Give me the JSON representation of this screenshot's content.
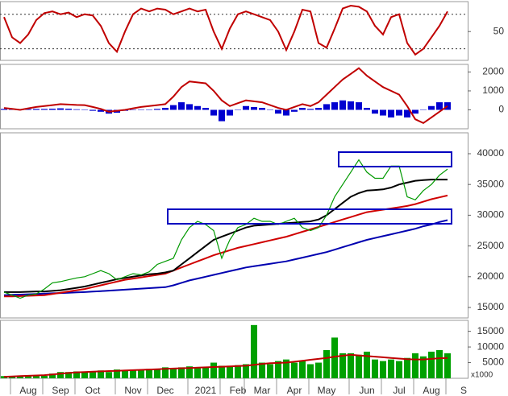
{
  "chart_data": [
    {
      "type": "line",
      "ylim": [
        0,
        102
      ],
      "yticks": [
        50
      ],
      "levels": [
        80,
        20
      ],
      "series": [
        {
          "name": null,
          "kind": "line",
          "color": "#c00000",
          "values": [
            75,
            40,
            30,
            45,
            70,
            82,
            85,
            80,
            83,
            75,
            80,
            78,
            60,
            30,
            15,
            50,
            80,
            90,
            85,
            90,
            88,
            80,
            85,
            90,
            85,
            88,
            50,
            20,
            55,
            80,
            85,
            80,
            75,
            70,
            50,
            18,
            50,
            88,
            85,
            30,
            22,
            55,
            90,
            95,
            93,
            85,
            60,
            45,
            75,
            80,
            30,
            10,
            20,
            40,
            60,
            85,
            null,
            null
          ]
        }
      ]
    },
    {
      "type": "combo",
      "ylim": [
        -1000,
        2400
      ],
      "yticks": [
        2000,
        1000,
        0
      ],
      "series": [
        {
          "name": null,
          "kind": "bar",
          "color": "#0000d0",
          "values": [
            50,
            40,
            30,
            40,
            50,
            50,
            60,
            80,
            60,
            30,
            0,
            -50,
            -100,
            -200,
            -150,
            -50,
            0,
            20,
            0,
            50,
            100,
            250,
            400,
            300,
            200,
            100,
            -300,
            -600,
            -300,
            0,
            200,
            150,
            100,
            0,
            -200,
            -300,
            -100,
            100,
            50,
            100,
            300,
            400,
            500,
            450,
            400,
            100,
            -200,
            -300,
            -400,
            -300,
            -400,
            -200,
            0,
            200,
            400,
            400,
            null,
            null
          ]
        },
        {
          "name": null,
          "kind": "line",
          "color": "#c00000",
          "values": [
            100,
            50,
            0,
            80,
            150,
            200,
            250,
            300,
            280,
            260,
            250,
            150,
            50,
            -100,
            -50,
            0,
            80,
            150,
            200,
            250,
            300,
            700,
            1200,
            1500,
            1450,
            1400,
            1000,
            500,
            200,
            350,
            500,
            450,
            400,
            250,
            100,
            0,
            150,
            300,
            200,
            400,
            800,
            1200,
            1600,
            1900,
            2200,
            1800,
            1500,
            1200,
            1000,
            800,
            200,
            -500,
            -700,
            -400,
            -100,
            200,
            null,
            null
          ]
        }
      ]
    },
    {
      "type": "line",
      "ylim": [
        13300,
        43400
      ],
      "yticks": [
        40000,
        35000,
        30000,
        25000,
        20000,
        15000
      ],
      "series": [
        {
          "name": null,
          "kind": "line",
          "color": "#0000b0",
          "values": [
            17000,
            17050,
            17100,
            17150,
            17200,
            17250,
            17300,
            17350,
            17400,
            17450,
            17500,
            17580,
            17660,
            17740,
            17820,
            17900,
            17980,
            18060,
            18140,
            18220,
            18300,
            18600,
            19000,
            19400,
            19700,
            20000,
            20300,
            20600,
            20900,
            21200,
            21500,
            21700,
            21900,
            22100,
            22300,
            22500,
            22800,
            23100,
            23400,
            23700,
            24000,
            24400,
            24800,
            25200,
            25600,
            26000,
            26300,
            26600,
            26900,
            27200,
            27500,
            27800,
            28200,
            28500,
            28900,
            29200,
            null,
            null
          ]
        },
        {
          "name": null,
          "kind": "line",
          "color": "#d00000",
          "values": [
            16800,
            16800,
            16850,
            16900,
            16950,
            17000,
            17200,
            17400,
            17600,
            17800,
            18000,
            18300,
            18600,
            18900,
            19200,
            19500,
            19700,
            19900,
            20100,
            20300,
            20500,
            21000,
            21500,
            22000,
            22500,
            23000,
            23500,
            23900,
            24300,
            24700,
            25000,
            25300,
            25600,
            25900,
            26200,
            26500,
            26900,
            27300,
            27700,
            28100,
            28500,
            28900,
            29300,
            29700,
            30100,
            30500,
            30700,
            30900,
            31100,
            31300,
            31500,
            31800,
            32200,
            32600,
            32900,
            33200,
            null,
            null
          ]
        },
        {
          "name": null,
          "kind": "line",
          "color": "#000000",
          "values": [
            17500,
            17500,
            17500,
            17550,
            17600,
            17600,
            17700,
            17800,
            18000,
            18200,
            18400,
            18700,
            19000,
            19300,
            19600,
            19800,
            20000,
            20200,
            20400,
            20500,
            20700,
            21000,
            22000,
            23000,
            24000,
            25000,
            26000,
            26500,
            27000,
            27500,
            28000,
            28300,
            28400,
            28500,
            28600,
            28700,
            28800,
            28900,
            29000,
            29300,
            30000,
            31000,
            32000,
            33000,
            33600,
            34000,
            34100,
            34200,
            34500,
            35000,
            35300,
            35600,
            35700,
            35800,
            35800,
            35800,
            null,
            null
          ]
        },
        {
          "name": null,
          "kind": "line",
          "color": "#009900",
          "values": [
            17500,
            17000,
            16500,
            17000,
            17200,
            18000,
            19000,
            19200,
            19500,
            19800,
            20000,
            20500,
            21000,
            20500,
            19500,
            20000,
            20500,
            20300,
            20800,
            22000,
            22500,
            23000,
            26000,
            28000,
            29000,
            28500,
            27500,
            23000,
            26000,
            28000,
            28500,
            29500,
            29000,
            29000,
            28500,
            29000,
            29500,
            28000,
            27500,
            28000,
            30000,
            33000,
            35000,
            37000,
            39000,
            37000,
            36000,
            36000,
            38000,
            38000,
            33000,
            32500,
            34000,
            35000,
            36500,
            37500,
            null,
            null
          ]
        }
      ]
    },
    {
      "type": "combo",
      "ylim": [
        0,
        18500
      ],
      "yticks": [
        15000,
        10000,
        5000
      ],
      "unit_label": "x1000",
      "categories": [
        null,
        null,
        null,
        "Aug",
        null,
        null,
        null,
        "Sep",
        null,
        null,
        null,
        "Oct",
        null,
        null,
        null,
        null,
        "Nov",
        null,
        null,
        null,
        "Dec",
        null,
        null,
        null,
        null,
        "2021",
        null,
        null,
        null,
        "Feb",
        null,
        null,
        "Mar",
        null,
        null,
        null,
        "Apr",
        null,
        null,
        null,
        "May",
        null,
        null,
        null,
        null,
        "Jun",
        null,
        null,
        null,
        "Jul",
        null,
        null,
        null,
        "Aug",
        null,
        null,
        null,
        "S"
      ],
      "series": [
        {
          "name": null,
          "kind": "bar",
          "color": "#00a000",
          "values": [
            700,
            700,
            700,
            700,
            700,
            800,
            1500,
            2000,
            2000,
            2200,
            2000,
            2200,
            2500,
            2000,
            2800,
            2500,
            2500,
            2600,
            3000,
            2800,
            3500,
            3000,
            3500,
            3800,
            3500,
            3500,
            5000,
            4000,
            4000,
            4200,
            4500,
            17000,
            5000,
            4500,
            5500,
            6000,
            5000,
            5500,
            4500,
            5000,
            9000,
            13000,
            8000,
            8000,
            7500,
            8500,
            6000,
            5500,
            6000,
            5500,
            6500,
            8000,
            7000,
            8500,
            9000,
            8000,
            null,
            null
          ]
        },
        {
          "name": null,
          "kind": "line",
          "color": "#c00000",
          "values": [
            500,
            600,
            700,
            800,
            900,
            1000,
            1200,
            1500,
            1700,
            1900,
            2000,
            2100,
            2200,
            2300,
            2400,
            2500,
            2600,
            2700,
            2800,
            2900,
            3000,
            3100,
            3200,
            3300,
            3400,
            3500,
            3600,
            3700,
            3800,
            3900,
            4000,
            4300,
            4600,
            4800,
            4900,
            5000,
            5300,
            5600,
            5900,
            6200,
            6500,
            6900,
            7200,
            7500,
            7300,
            7100,
            6900,
            6700,
            6500,
            6300,
            6100,
            6000,
            6000,
            6200,
            6400,
            6500,
            null,
            null
          ]
        }
      ]
    }
  ]
}
